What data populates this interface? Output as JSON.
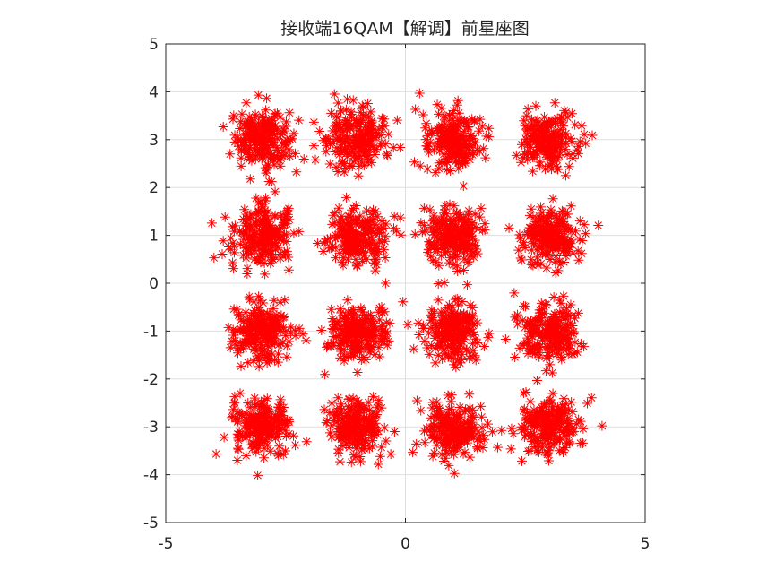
{
  "chart_data": {
    "type": "scatter",
    "title": "接收端16QAM【解调】前星座图",
    "xlabel": "",
    "ylabel": "",
    "xlim": [
      -5,
      5
    ],
    "ylim": [
      -5,
      5
    ],
    "xticks": [
      -5,
      0,
      5
    ],
    "yticks": [
      -5,
      -4,
      -3,
      -2,
      -1,
      0,
      1,
      2,
      3,
      4,
      5
    ],
    "xtick_labels": [
      "-5",
      "0",
      "5"
    ],
    "ytick_labels": [
      "-5",
      "-4",
      "-3",
      "-2",
      "-1",
      "0",
      "1",
      "2",
      "3",
      "4",
      "5"
    ],
    "grid": "on",
    "marker": "*",
    "marker_color": "#ff0000",
    "axis_color": "#262626",
    "grid_color": "#dfdfdf",
    "series": [
      {
        "points_per_cluster": 220,
        "noise_sigma": 0.3,
        "clusters": [
          {
            "x": -3,
            "y": 3
          },
          {
            "x": -1,
            "y": 3
          },
          {
            "x": 1,
            "y": 3
          },
          {
            "x": 3,
            "y": 3
          },
          {
            "x": -3,
            "y": 1
          },
          {
            "x": -1,
            "y": 1
          },
          {
            "x": 1,
            "y": 1
          },
          {
            "x": 3,
            "y": 1
          },
          {
            "x": -3,
            "y": -1
          },
          {
            "x": -1,
            "y": -1
          },
          {
            "x": 1,
            "y": -1
          },
          {
            "x": 3,
            "y": -1
          },
          {
            "x": -3,
            "y": -3
          },
          {
            "x": -1,
            "y": -3
          },
          {
            "x": 1,
            "y": -3
          },
          {
            "x": 3,
            "y": -3
          }
        ]
      }
    ]
  }
}
